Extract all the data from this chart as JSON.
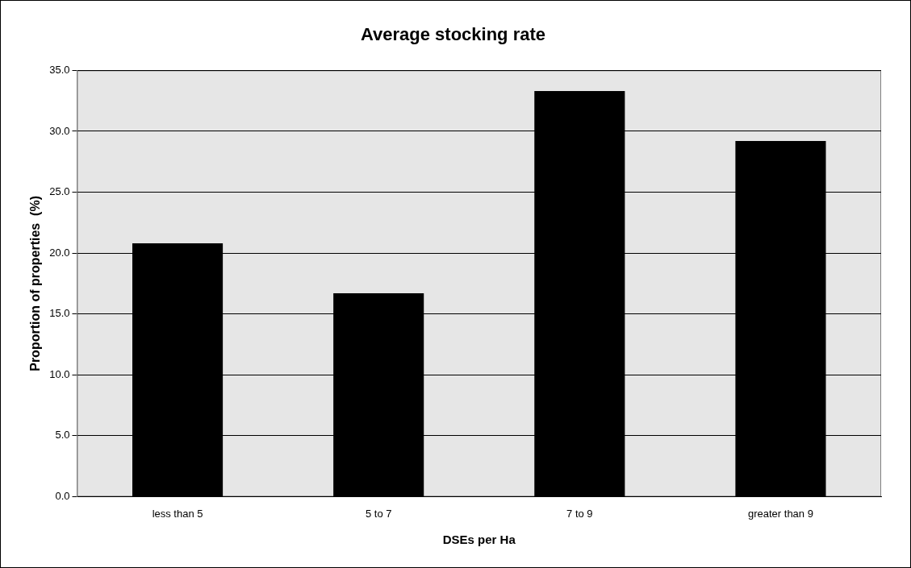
{
  "chart_data": {
    "type": "bar",
    "title": "Average stocking rate",
    "xlabel": "DSEs per Ha",
    "ylabel": "Proportion of properties  (%)",
    "categories": [
      "less than 5",
      "5 to 7",
      "7 to 9",
      "greater than 9"
    ],
    "values": [
      20.8,
      16.7,
      33.3,
      29.2
    ],
    "color": "#000000",
    "ylim": [
      0,
      35
    ],
    "yticks": [
      {
        "value": 0,
        "label": "0.0"
      },
      {
        "value": 5,
        "label": "5.0"
      },
      {
        "value": 10,
        "label": "10.0"
      },
      {
        "value": 15,
        "label": "15.0"
      },
      {
        "value": 20,
        "label": "20.0"
      },
      {
        "value": 25,
        "label": "25.0"
      },
      {
        "value": 30,
        "label": "30.0"
      },
      {
        "value": 35,
        "label": "35.0"
      }
    ],
    "grid": "y",
    "legend": false
  }
}
